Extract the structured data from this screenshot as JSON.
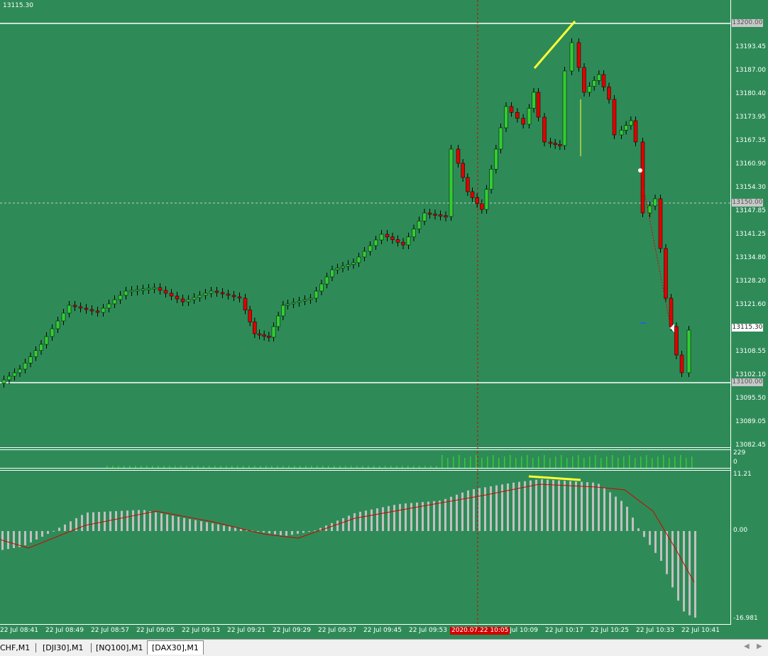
{
  "chart": {
    "symbol_price": "13115.30",
    "price_axis": [
      "13193.45",
      "13187.00",
      "13180.40",
      "13173.95",
      "13167.35",
      "13160.90",
      "13154.30",
      "13147.85",
      "13141.25",
      "13134.80",
      "13128.20",
      "13121.60",
      "13108.55",
      "13102.10",
      "13095.50",
      "13089.05",
      "13082.45"
    ],
    "level_high": "13200.00",
    "level_mid": "13150.00",
    "level_low": "13100.00",
    "current_price": "13115.30",
    "volume_max": "229",
    "volume_min": "0",
    "macd_max": "11.21",
    "macd_zero": "0.00",
    "macd_min": "-16.981",
    "time_axis": [
      "22 Jul 08:41",
      "22 Jul 08:49",
      "22 Jul 08:57",
      "22 Jul 09:05",
      "22 Jul 09:13",
      "22 Jul 09:21",
      "22 Jul 09:29",
      "22 Jul 09:37",
      "22 Jul 09:45",
      "22 Jul 09:53",
      "22 Jul 10:09",
      "22 Jul 10:17",
      "22 Jul 10:25",
      "22 Jul 10:33",
      "22 Jul 10:41"
    ],
    "crosshair_date": "2020.07.22 10:05",
    "colors": {
      "background": "#2e8b57",
      "bull": "#32cd32",
      "bear": "#e00000",
      "macd_hist": "#c0c0c0",
      "signal": "#d40000",
      "highlight": "#ffff33"
    }
  },
  "tabs": [
    {
      "label": "CHF,M1"
    },
    {
      "label": "[DJI30],M1"
    },
    {
      "label": "[NQ100],M1"
    },
    {
      "label": "[DAX30],M1",
      "active": true
    }
  ]
}
